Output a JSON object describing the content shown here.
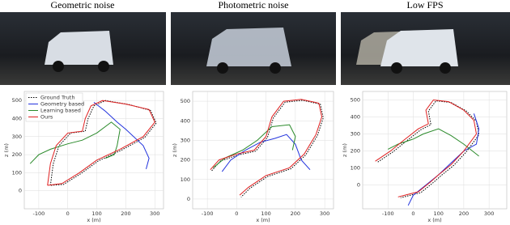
{
  "chart_data": [
    {
      "type": "line",
      "title": "Geometric noise",
      "xlabel": "x (m)",
      "ylabel": "z (m)",
      "xlim": [
        -150,
        330
      ],
      "ylim": [
        -100,
        550
      ],
      "xticks": [
        -100,
        0,
        100,
        200,
        300
      ],
      "yticks": [
        0,
        100,
        200,
        300,
        400,
        500
      ],
      "grid": true,
      "legend": "upper left",
      "series": [
        {
          "name": "Ground Truth",
          "color": "#000000",
          "linestyle": "dotted",
          "x": [
            -60,
            -50,
            -30,
            10,
            60,
            70,
            90,
            130,
            210,
            285,
            305,
            265,
            185,
            105,
            45,
            -15,
            -60
          ],
          "values": [
            30,
            150,
            250,
            320,
            330,
            400,
            470,
            500,
            478,
            445,
            375,
            295,
            225,
            165,
            95,
            35,
            30
          ]
        },
        {
          "name": "Geometry based",
          "color": "#2233dd",
          "linestyle": "solid",
          "x": [
            90,
            130,
            170,
            200,
            260,
            280,
            270
          ],
          "values": [
            490,
            440,
            380,
            340,
            250,
            180,
            120
          ]
        },
        {
          "name": "Learning based",
          "color": "#2a8a2a",
          "linestyle": "solid",
          "x": [
            -130,
            -100,
            -60,
            0,
            50,
            100,
            150,
            180,
            170,
            160,
            130
          ],
          "values": [
            150,
            200,
            230,
            260,
            280,
            320,
            380,
            340,
            250,
            200,
            180
          ]
        },
        {
          "name": "Ours",
          "color": "#e02020",
          "linestyle": "solid",
          "x": [
            -70,
            -60,
            -40,
            0,
            50,
            60,
            80,
            120,
            200,
            280,
            300,
            260,
            180,
            100,
            40,
            -20,
            -70
          ],
          "values": [
            30,
            150,
            250,
            320,
            330,
            400,
            470,
            500,
            480,
            450,
            380,
            300,
            230,
            170,
            100,
            40,
            30
          ]
        }
      ]
    },
    {
      "type": "line",
      "title": "Photometric noise",
      "xlabel": "x (m)",
      "ylabel": "z (m)",
      "xlim": [
        -150,
        330
      ],
      "ylim": [
        -50,
        550
      ],
      "xticks": [
        -100,
        0,
        100,
        200,
        300
      ],
      "yticks": [
        0,
        100,
        200,
        300,
        400,
        500
      ],
      "grid": true,
      "series": [
        {
          "color": "#000000",
          "linestyle": "dotted",
          "x": [
            -85,
            -55,
            5,
            65,
            105,
            125,
            165,
            225,
            285,
            295,
            275,
            235,
            185,
            105,
            45,
            15
          ],
          "values": [
            145,
            195,
            225,
            245,
            315,
            415,
            495,
            505,
            485,
            415,
            325,
            225,
            155,
            115,
            55,
            10
          ]
        },
        {
          "color": "#2233dd",
          "linestyle": "solid",
          "x": [
            -50,
            -20,
            30,
            80,
            130,
            170,
            200,
            220,
            250
          ],
          "values": [
            140,
            200,
            250,
            290,
            310,
            330,
            280,
            200,
            150
          ]
        },
        {
          "color": "#2a8a2a",
          "linestyle": "solid",
          "x": [
            -80,
            -40,
            20,
            70,
            120,
            180,
            200,
            190
          ],
          "values": [
            160,
            210,
            250,
            300,
            370,
            380,
            320,
            250
          ]
        },
        {
          "color": "#e02020",
          "linestyle": "solid",
          "x": [
            -90,
            -60,
            0,
            60,
            100,
            120,
            160,
            220,
            280,
            290,
            270,
            230,
            180,
            100,
            40,
            10
          ],
          "values": [
            150,
            200,
            230,
            250,
            320,
            420,
            500,
            510,
            490,
            420,
            330,
            230,
            160,
            120,
            60,
            20
          ]
        }
      ]
    },
    {
      "type": "line",
      "title": "Low FPS",
      "xlabel": "x (m)",
      "ylabel": "z (m)",
      "xlim": [
        -200,
        370
      ],
      "ylim": [
        -140,
        550
      ],
      "xticks": [
        -100,
        0,
        100,
        200,
        300
      ],
      "yticks": [
        0,
        100,
        200,
        300,
        400,
        500
      ],
      "grid": true,
      "series": [
        {
          "color": "#000000",
          "linestyle": "dotted",
          "x": [
            -140,
            -80,
            -30,
            30,
            70,
            60,
            90,
            150,
            210,
            250,
            260,
            210,
            160,
            110,
            80,
            30,
            -50
          ],
          "values": [
            135,
            195,
            255,
            325,
            355,
            435,
            495,
            485,
            435,
            375,
            295,
            195,
            115,
            55,
            15,
            -45,
            -75
          ]
        },
        {
          "color": "#2233dd",
          "linestyle": "solid",
          "x": [
            -20,
            0,
            50,
            100,
            150,
            200,
            250,
            260,
            240
          ],
          "values": [
            -120,
            -60,
            0,
            60,
            130,
            200,
            240,
            330,
            420
          ]
        },
        {
          "color": "#2a8a2a",
          "linestyle": "solid",
          "x": [
            -100,
            -60,
            0,
            40,
            100,
            150,
            200,
            260
          ],
          "values": [
            210,
            240,
            270,
            300,
            330,
            290,
            240,
            170
          ]
        },
        {
          "color": "#e02020",
          "linestyle": "solid",
          "x": [
            -150,
            -90,
            -40,
            20,
            60,
            50,
            80,
            140,
            200,
            240,
            250,
            200,
            150,
            100,
            70,
            20,
            -60
          ],
          "values": [
            140,
            200,
            260,
            330,
            360,
            440,
            500,
            490,
            440,
            380,
            300,
            200,
            120,
            60,
            20,
            -40,
            -70
          ]
        }
      ]
    }
  ]
}
